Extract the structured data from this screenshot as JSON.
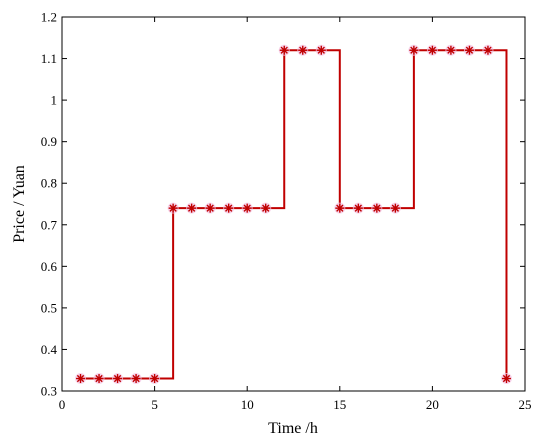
{
  "chart_data": {
    "type": "line",
    "xlabel": "Time /h",
    "ylabel": "Price  / Yuan",
    "xlim": [
      0,
      25
    ],
    "ylim": [
      0.3,
      1.2
    ],
    "xticks": [
      0,
      5,
      10,
      15,
      20,
      25
    ],
    "xtick_labels": [
      "0",
      "5",
      "10",
      "15",
      "20",
      "25"
    ],
    "yticks": [
      0.3,
      0.4,
      0.5,
      0.6,
      0.7,
      0.8,
      0.9,
      1.0,
      1.1,
      1.2
    ],
    "ytick_labels": [
      "0.3",
      "0.4",
      "0.5",
      "0.6",
      "0.7",
      "0.8",
      "0.9",
      "1",
      "1.1",
      "1.2"
    ],
    "grid": false,
    "step": true,
    "series": [
      {
        "x": [
          1,
          2,
          3,
          4,
          5,
          6,
          7,
          8,
          9,
          10,
          11,
          12,
          13,
          14,
          15,
          16,
          17,
          18,
          19,
          20,
          21,
          22,
          23,
          24
        ],
        "values": [
          0.33,
          0.33,
          0.33,
          0.33,
          0.33,
          0.74,
          0.74,
          0.74,
          0.74,
          0.74,
          0.74,
          1.12,
          1.12,
          1.12,
          0.74,
          0.74,
          0.74,
          0.74,
          1.12,
          1.12,
          1.12,
          1.12,
          1.12,
          0.33
        ],
        "line_color": "#c00000",
        "marker": "asterisk",
        "marker_color": "#c00000"
      }
    ]
  }
}
